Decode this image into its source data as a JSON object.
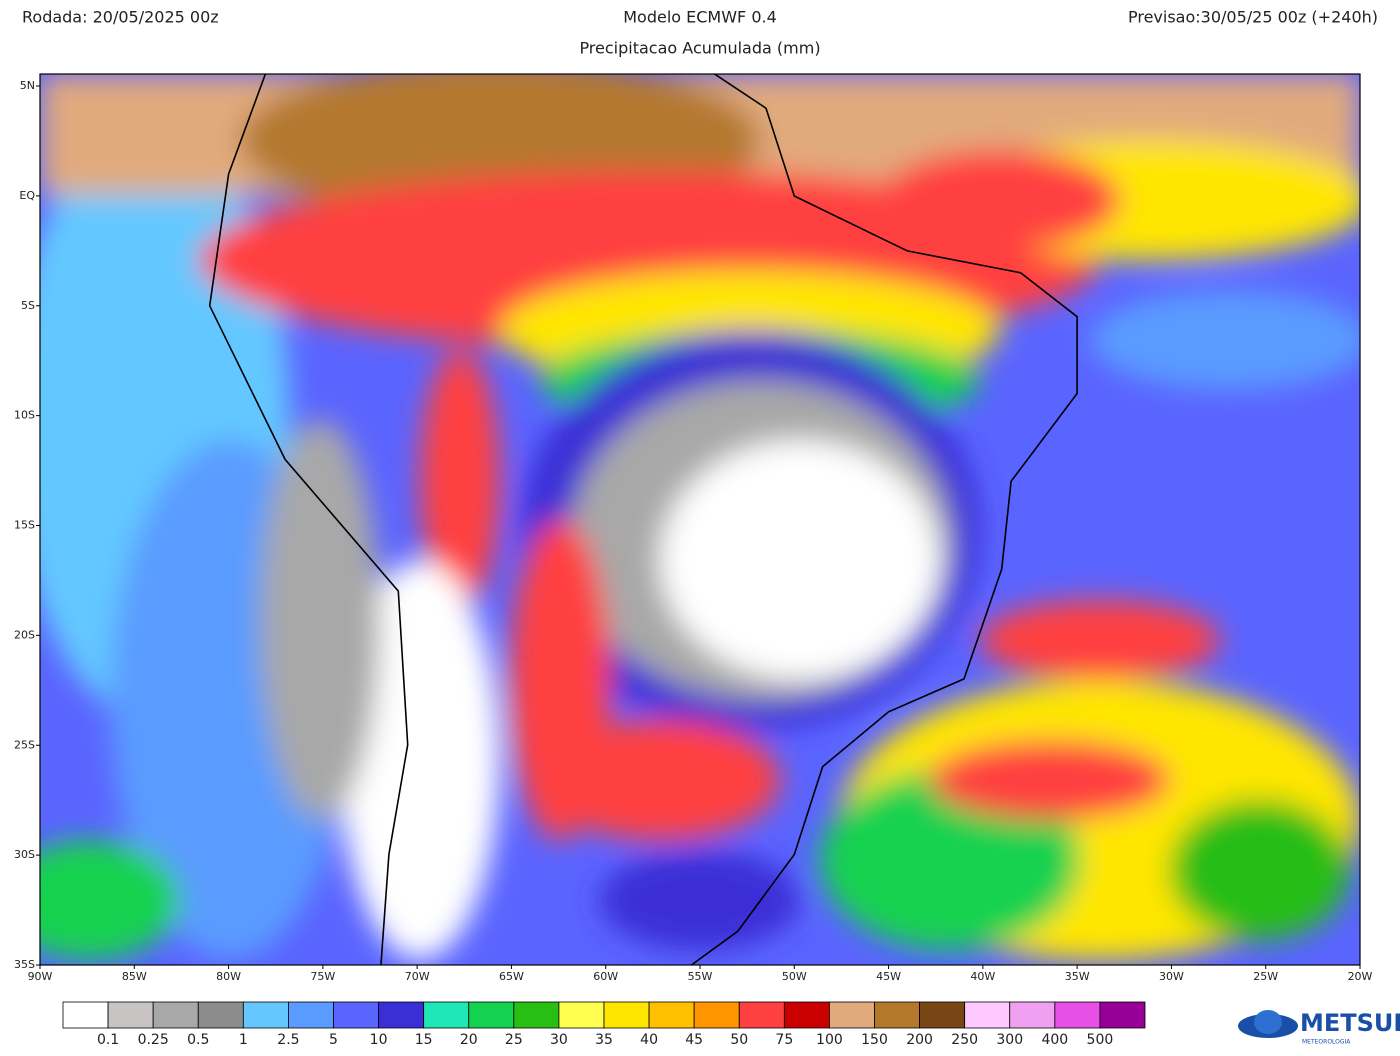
{
  "header": {
    "run": "Rodada: 20/05/2025 00z",
    "model": "Modelo ECMWF 0.4",
    "forecast": "Previsao:30/05/25 00z (+240h)",
    "subtitle": "Precipitacao Acumulada (mm)"
  },
  "map": {
    "lat_labels": [
      "5N",
      "EQ",
      "5S",
      "10S",
      "15S",
      "20S",
      "25S",
      "30S",
      "35S"
    ],
    "lon_labels": [
      "90W",
      "85W",
      "80W",
      "75W",
      "70W",
      "65W",
      "60W",
      "55W",
      "50W",
      "45W",
      "40W",
      "35W",
      "30W",
      "25W",
      "20W"
    ]
  },
  "legend": {
    "colors": [
      "#ffffff",
      "#c8c4c4",
      "#a8a8a8",
      "#8c8c8c",
      "#64c8ff",
      "#5a9bff",
      "#5a64ff",
      "#3a2fd6",
      "#1ee6b4",
      "#14d250",
      "#28be14",
      "#ffff50",
      "#ffe600",
      "#ffc000",
      "#ff9600",
      "#ff4040",
      "#c80000",
      "#e1aa7d",
      "#b4782d",
      "#784614",
      "#ffc8ff",
      "#f0a0f0",
      "#e650e6",
      "#960096"
    ],
    "labels": [
      "0.1",
      "0.25",
      "0.5",
      "1",
      "2.5",
      "5",
      "10",
      "15",
      "20",
      "25",
      "30",
      "35",
      "40",
      "45",
      "50",
      "75",
      "100",
      "150",
      "200",
      "250",
      "300",
      "400",
      "500"
    ]
  },
  "logo": {
    "name": "METSUL",
    "tagline": "METEOROLOGIA"
  }
}
